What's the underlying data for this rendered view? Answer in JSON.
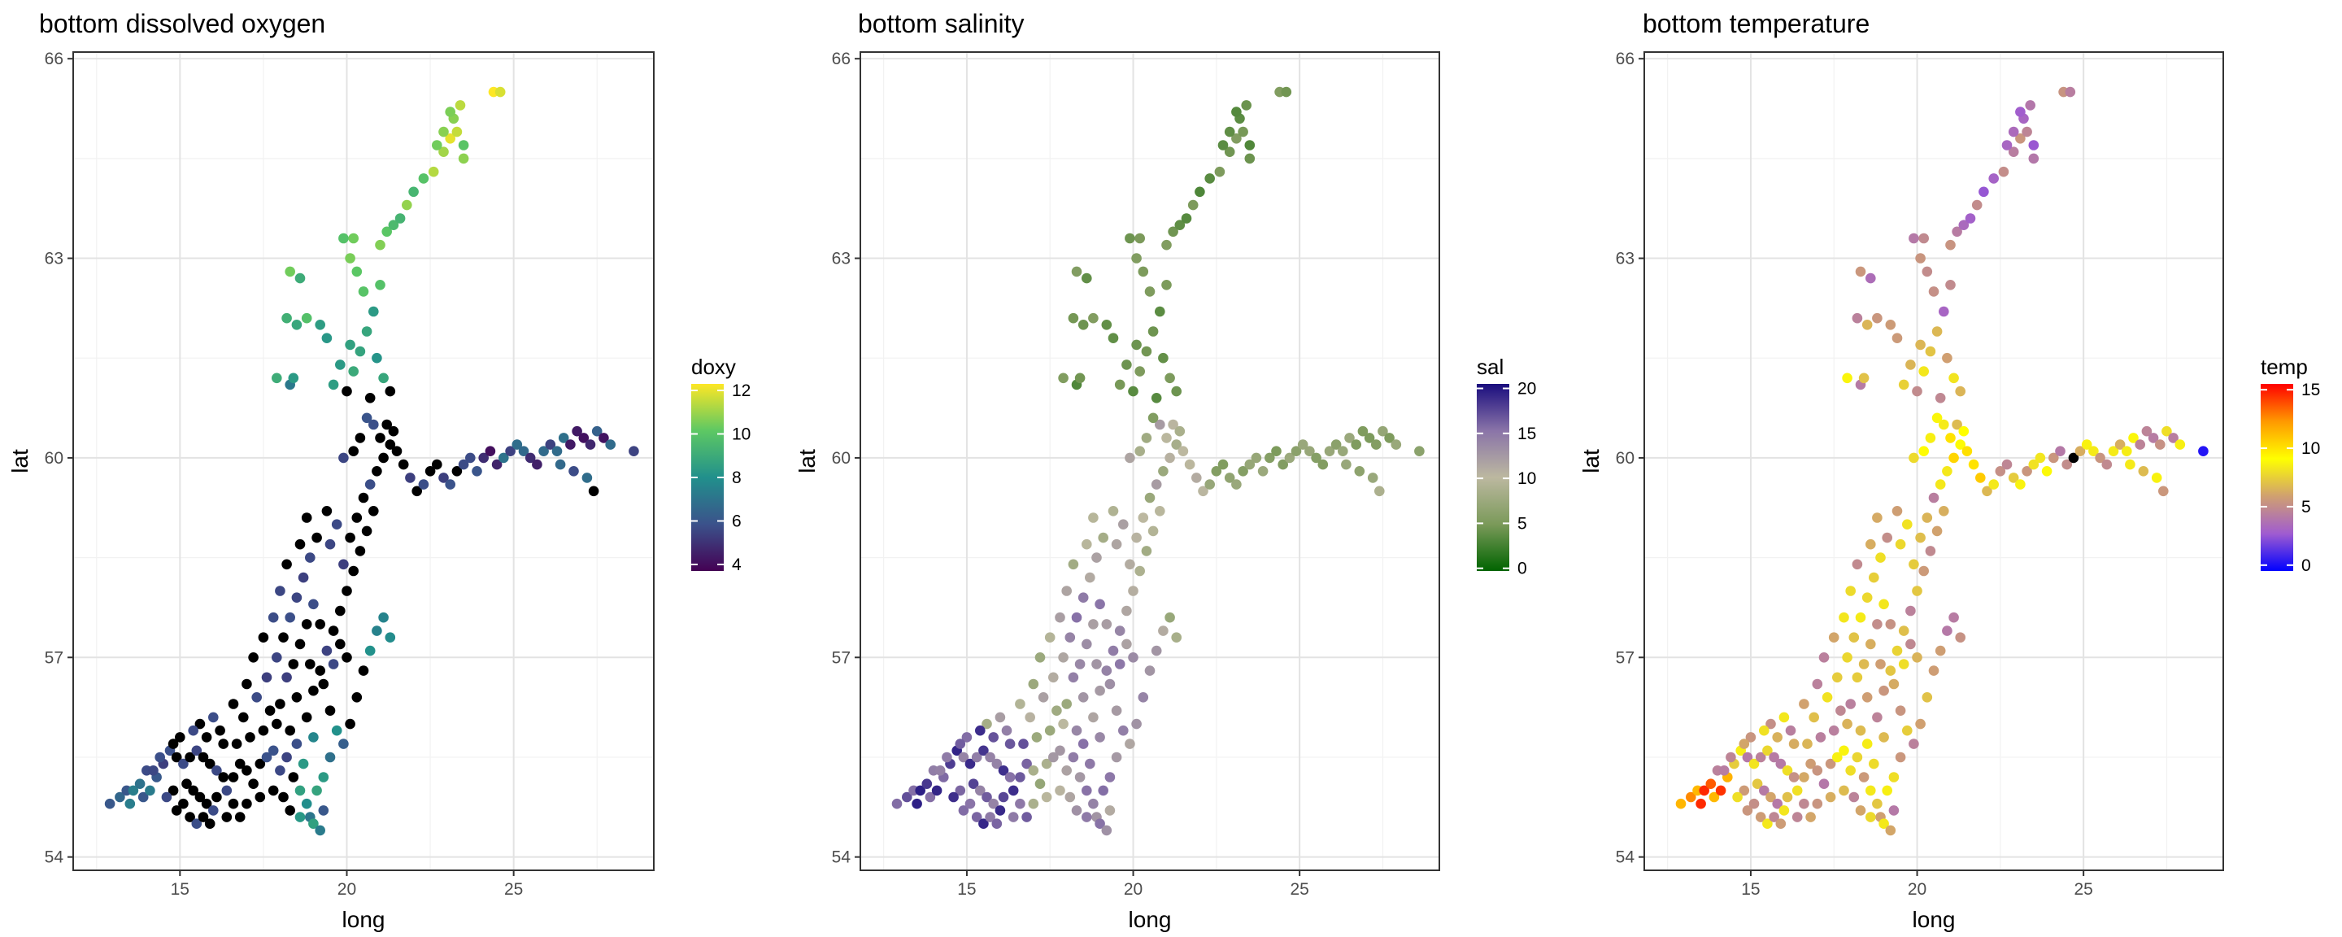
{
  "chart_data": [
    {
      "type": "scatter",
      "title": "bottom dissolved oxygen",
      "xlabel": "long",
      "ylabel": "lat",
      "xlim": [
        11.8,
        29.2
      ],
      "ylim": [
        53.8,
        66.1
      ],
      "xticks": [
        15,
        20,
        25
      ],
      "yticks": [
        54,
        57,
        60,
        63,
        66
      ],
      "grid": true,
      "legend": {
        "title": "doxy",
        "placement": "right",
        "range": [
          3.7,
          12.3
        ],
        "ticks": [
          4,
          6,
          8,
          10,
          12
        ],
        "colors": [
          "#440154",
          "#3b528b",
          "#21908c",
          "#5dc863",
          "#fde725"
        ]
      },
      "na_color": "#000000",
      "scheme": "oxygen"
    },
    {
      "type": "scatter",
      "title": "bottom salinity",
      "xlabel": "long",
      "ylabel": "lat",
      "xlim": [
        11.8,
        29.2
      ],
      "ylim": [
        53.8,
        66.1
      ],
      "xticks": [
        15,
        20,
        25
      ],
      "yticks": [
        54,
        57,
        60,
        63,
        66
      ],
      "grid": true,
      "legend": {
        "title": "sal",
        "placement": "right",
        "range": [
          -0.3,
          20.5
        ],
        "ticks": [
          0,
          5,
          10,
          15,
          20
        ],
        "colors": [
          "#006400",
          "#7b9a5a",
          "#bcb8a0",
          "#8a74a8",
          "#1a0d7e"
        ]
      },
      "na_color": "#000000",
      "scheme": "salinity"
    },
    {
      "type": "scatter",
      "title": "bottom temperature",
      "xlabel": "long",
      "ylabel": "lat",
      "xlim": [
        11.8,
        29.2
      ],
      "ylim": [
        53.8,
        66.1
      ],
      "xticks": [
        15,
        20,
        25
      ],
      "yticks": [
        54,
        57,
        60,
        63,
        66
      ],
      "grid": true,
      "legend": {
        "title": "temp",
        "placement": "right",
        "range": [
          -0.5,
          15.5
        ],
        "ticks": [
          0,
          5,
          10,
          15
        ],
        "colors": [
          "#0000ff",
          "#a05cd0",
          "#d0a070",
          "#ffff00",
          "#ff9900",
          "#ff0000"
        ]
      },
      "na_color": "#000000",
      "scheme": "temperature"
    }
  ],
  "stations_note_free": true,
  "stations": [
    [
      12.9,
      54.8
    ],
    [
      13.2,
      54.9
    ],
    [
      13.4,
      55.0
    ],
    [
      13.6,
      55.0
    ],
    [
      13.8,
      55.1
    ],
    [
      13.5,
      54.8
    ],
    [
      13.9,
      54.9
    ],
    [
      14.1,
      55.0
    ],
    [
      14.3,
      55.2
    ],
    [
      14.0,
      55.3
    ],
    [
      14.5,
      55.4
    ],
    [
      14.7,
      55.6
    ],
    [
      14.9,
      55.5
    ],
    [
      15.1,
      55.4
    ],
    [
      15.3,
      55.5
    ],
    [
      15.5,
      55.6
    ],
    [
      15.7,
      55.5
    ],
    [
      15.9,
      55.4
    ],
    [
      16.1,
      55.3
    ],
    [
      16.3,
      55.2
    ],
    [
      15.2,
      55.1
    ],
    [
      15.4,
      55.0
    ],
    [
      15.6,
      54.9
    ],
    [
      15.8,
      54.8
    ],
    [
      16.0,
      54.7
    ],
    [
      15.3,
      54.6
    ],
    [
      15.5,
      54.5
    ],
    [
      15.7,
      54.6
    ],
    [
      15.9,
      54.5
    ],
    [
      16.1,
      54.9
    ],
    [
      14.8,
      55.0
    ],
    [
      14.6,
      54.9
    ],
    [
      14.9,
      54.7
    ],
    [
      15.1,
      54.8
    ],
    [
      16.4,
      55.0
    ],
    [
      16.6,
      55.2
    ],
    [
      16.8,
      55.4
    ],
    [
      17.0,
      55.3
    ],
    [
      17.2,
      55.1
    ],
    [
      17.4,
      55.4
    ],
    [
      17.6,
      55.5
    ],
    [
      17.8,
      55.6
    ],
    [
      18.0,
      55.3
    ],
    [
      18.2,
      55.5
    ],
    [
      18.4,
      55.2
    ],
    [
      18.6,
      55.0
    ],
    [
      18.8,
      54.8
    ],
    [
      18.9,
      54.6
    ],
    [
      19.0,
      54.5
    ],
    [
      19.2,
      54.4
    ],
    [
      19.3,
      54.7
    ],
    [
      19.1,
      55.0
    ],
    [
      18.7,
      55.4
    ],
    [
      18.5,
      55.7
    ],
    [
      18.3,
      55.9
    ],
    [
      17.9,
      56.0
    ],
    [
      17.5,
      55.9
    ],
    [
      17.1,
      55.8
    ],
    [
      16.7,
      55.7
    ],
    [
      16.3,
      55.7
    ],
    [
      16.9,
      56.1
    ],
    [
      17.3,
      56.4
    ],
    [
      17.6,
      56.7
    ],
    [
      17.9,
      57.0
    ],
    [
      18.1,
      57.3
    ],
    [
      18.3,
      57.6
    ],
    [
      18.5,
      57.9
    ],
    [
      18.7,
      58.2
    ],
    [
      18.9,
      58.5
    ],
    [
      19.1,
      58.8
    ],
    [
      17.8,
      57.6
    ],
    [
      17.5,
      57.3
    ],
    [
      17.2,
      57.0
    ],
    [
      17.0,
      56.6
    ],
    [
      16.6,
      56.3
    ],
    [
      18.0,
      58.0
    ],
    [
      18.2,
      58.4
    ],
    [
      18.6,
      58.7
    ],
    [
      18.8,
      59.1
    ],
    [
      19.4,
      59.2
    ],
    [
      19.0,
      56.5
    ],
    [
      19.2,
      56.8
    ],
    [
      19.4,
      57.1
    ],
    [
      19.6,
      57.4
    ],
    [
      19.8,
      57.7
    ],
    [
      20.0,
      58.0
    ],
    [
      20.2,
      58.3
    ],
    [
      20.4,
      58.6
    ],
    [
      20.6,
      58.9
    ],
    [
      20.8,
      59.2
    ],
    [
      19.5,
      56.2
    ],
    [
      19.7,
      55.9
    ],
    [
      19.9,
      55.7
    ],
    [
      20.1,
      56.0
    ],
    [
      20.3,
      56.4
    ],
    [
      20.5,
      56.8
    ],
    [
      20.7,
      57.1
    ],
    [
      20.9,
      57.4
    ],
    [
      21.1,
      57.6
    ],
    [
      21.3,
      57.3
    ],
    [
      20.0,
      57.0
    ],
    [
      19.8,
      57.2
    ],
    [
      19.6,
      56.9
    ],
    [
      19.3,
      56.6
    ],
    [
      19.9,
      58.4
    ],
    [
      20.1,
      58.8
    ],
    [
      20.3,
      59.1
    ],
    [
      20.5,
      59.4
    ],
    [
      19.7,
      59.0
    ],
    [
      19.5,
      58.7
    ],
    [
      20.7,
      59.6
    ],
    [
      20.9,
      59.8
    ],
    [
      21.1,
      60.0
    ],
    [
      21.3,
      60.2
    ],
    [
      21.5,
      60.1
    ],
    [
      21.7,
      59.9
    ],
    [
      21.9,
      59.7
    ],
    [
      22.1,
      59.5
    ],
    [
      22.3,
      59.6
    ],
    [
      22.5,
      59.8
    ],
    [
      22.7,
      59.9
    ],
    [
      22.9,
      59.7
    ],
    [
      23.1,
      59.6
    ],
    [
      23.3,
      59.8
    ],
    [
      23.5,
      59.9
    ],
    [
      23.7,
      60.0
    ],
    [
      23.9,
      59.8
    ],
    [
      24.1,
      60.0
    ],
    [
      24.3,
      60.1
    ],
    [
      24.5,
      59.9
    ],
    [
      24.7,
      60.0
    ],
    [
      24.9,
      60.1
    ],
    [
      25.1,
      60.2
    ],
    [
      25.3,
      60.1
    ],
    [
      25.5,
      60.0
    ],
    [
      25.7,
      59.9
    ],
    [
      25.9,
      60.1
    ],
    [
      26.1,
      60.2
    ],
    [
      26.3,
      60.1
    ],
    [
      26.5,
      60.3
    ],
    [
      26.7,
      60.2
    ],
    [
      26.9,
      60.4
    ],
    [
      27.1,
      60.3
    ],
    [
      27.3,
      60.2
    ],
    [
      27.5,
      60.4
    ],
    [
      27.7,
      60.3
    ],
    [
      27.9,
      60.2
    ],
    [
      28.6,
      60.1
    ],
    [
      27.2,
      59.7
    ],
    [
      27.4,
      59.5
    ],
    [
      26.8,
      59.8
    ],
    [
      26.4,
      59.9
    ],
    [
      21.0,
      60.3
    ],
    [
      20.8,
      60.5
    ],
    [
      20.6,
      60.6
    ],
    [
      20.4,
      60.3
    ],
    [
      20.2,
      60.1
    ],
    [
      21.2,
      60.5
    ],
    [
      21.4,
      60.4
    ],
    [
      19.9,
      60.0
    ],
    [
      20.0,
      61.0
    ],
    [
      20.2,
      61.3
    ],
    [
      20.4,
      61.6
    ],
    [
      20.6,
      61.9
    ],
    [
      20.8,
      62.2
    ],
    [
      20.1,
      61.7
    ],
    [
      19.8,
      61.4
    ],
    [
      19.6,
      61.1
    ],
    [
      19.4,
      61.8
    ],
    [
      19.2,
      62.0
    ],
    [
      18.8,
      62.1
    ],
    [
      18.5,
      62.0
    ],
    [
      18.2,
      62.1
    ],
    [
      17.9,
      61.2
    ],
    [
      18.3,
      61.1
    ],
    [
      20.9,
      61.5
    ],
    [
      21.1,
      61.2
    ],
    [
      21.0,
      62.6
    ],
    [
      20.5,
      62.5
    ],
    [
      20.3,
      62.8
    ],
    [
      20.1,
      63.0
    ],
    [
      19.9,
      63.3
    ],
    [
      20.2,
      63.3
    ],
    [
      18.6,
      62.7
    ],
    [
      18.3,
      62.8
    ],
    [
      21.0,
      63.2
    ],
    [
      21.2,
      63.4
    ],
    [
      21.4,
      63.5
    ],
    [
      21.6,
      63.6
    ],
    [
      21.8,
      63.8
    ],
    [
      22.0,
      64.0
    ],
    [
      22.3,
      64.2
    ],
    [
      22.6,
      64.3
    ],
    [
      22.9,
      64.6
    ],
    [
      23.1,
      64.8
    ],
    [
      22.7,
      64.7
    ],
    [
      23.3,
      64.9
    ],
    [
      23.5,
      64.5
    ],
    [
      23.2,
      65.1
    ],
    [
      23.4,
      65.3
    ],
    [
      23.1,
      65.2
    ],
    [
      22.9,
      64.9
    ],
    [
      23.5,
      64.7
    ],
    [
      24.4,
      65.5
    ],
    [
      24.6,
      65.5
    ],
    [
      18.4,
      61.2
    ],
    [
      20.7,
      60.9
    ],
    [
      21.3,
      61.0
    ],
    [
      16.0,
      56.1
    ],
    [
      15.6,
      56.0
    ],
    [
      16.2,
      55.9
    ],
    [
      15.8,
      55.8
    ],
    [
      15.4,
      55.9
    ],
    [
      15.0,
      55.8
    ],
    [
      14.8,
      55.7
    ],
    [
      14.4,
      55.5
    ],
    [
      14.2,
      55.3
    ],
    [
      16.4,
      54.6
    ],
    [
      16.6,
      54.8
    ],
    [
      16.8,
      54.6
    ],
    [
      17.0,
      54.8
    ],
    [
      17.4,
      54.9
    ],
    [
      17.8,
      55.0
    ],
    [
      18.1,
      54.9
    ],
    [
      18.3,
      54.7
    ],
    [
      18.6,
      54.6
    ],
    [
      19.3,
      55.2
    ],
    [
      19.5,
      55.5
    ],
    [
      19.0,
      55.8
    ],
    [
      18.8,
      56.1
    ],
    [
      18.5,
      56.4
    ],
    [
      18.2,
      56.7
    ],
    [
      18.0,
      56.3
    ],
    [
      17.7,
      56.2
    ],
    [
      19.2,
      57.5
    ],
    [
      19.0,
      57.8
    ],
    [
      18.8,
      57.5
    ],
    [
      18.6,
      57.2
    ],
    [
      18.4,
      56.9
    ],
    [
      18.9,
      56.9
    ]
  ]
}
